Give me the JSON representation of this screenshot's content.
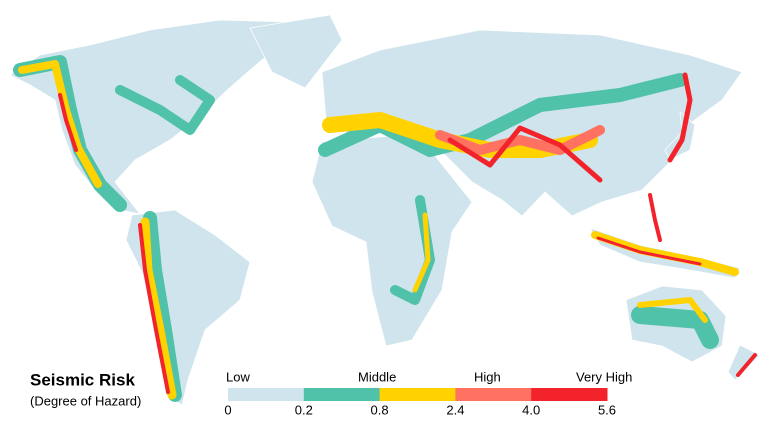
{
  "title": "Seismic Risk",
  "subtitle": "(Degree of Hazard)",
  "legend": {
    "levels": [
      "Low",
      "Middle",
      "High",
      "Very High"
    ],
    "colors": [
      "#cfe4ec",
      "#4fc2a9",
      "#ffd200",
      "#ff7262",
      "#f3232c"
    ],
    "ticks": [
      0,
      0.2,
      0.8,
      2.4,
      {
        "value": 4,
        "label": "4.0"
      },
      5.6
    ]
  }
}
